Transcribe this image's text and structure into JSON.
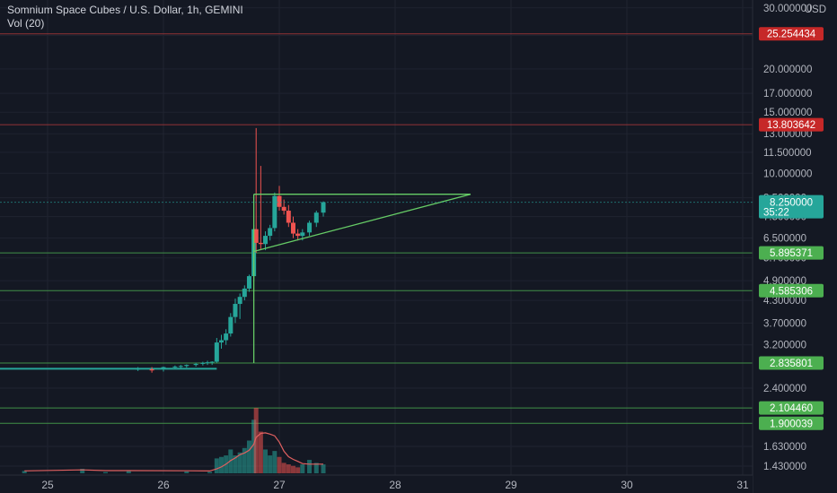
{
  "header": {
    "title": "Somnium Space Cubes / U.S. Dollar, 1h, GEMINI",
    "volume_label": "Vol (20)"
  },
  "colors": {
    "background": "#141823",
    "grid": "#1f2330",
    "up": "#26a69a",
    "down": "#ef5350",
    "horizontal_line_green": "#4caf50",
    "horizontal_line_red": "#b23a3a",
    "pattern_line": "#66cc66",
    "volume_ma": "#e06060",
    "axis_text": "#b2b5be"
  },
  "price_axis": {
    "currency": "USD",
    "ticks": [
      "30.000000",
      "25.000000",
      "20.000000",
      "17.000000",
      "15.000000",
      "13.000000",
      "11.500000",
      "10.000000",
      "8.500000",
      "7.500000",
      "6.500000",
      "5.700000",
      "4.900000",
      "4.300000",
      "3.700000",
      "3.200000",
      "2.400000",
      "1.630000",
      "1.430000"
    ],
    "scale": "log"
  },
  "time_axis": {
    "ticks": [
      "25",
      "26",
      "27",
      "28",
      "29",
      "30",
      "31"
    ]
  },
  "horizontal_levels": [
    {
      "label": "25.254434",
      "value": 25.254434,
      "color": "red"
    },
    {
      "label": "13.803642",
      "value": 13.803642,
      "color": "red"
    },
    {
      "label": "5.895371",
      "value": 5.895371,
      "color": "green"
    },
    {
      "label": "4.585306",
      "value": 4.585306,
      "color": "green"
    },
    {
      "label": "2.835801",
      "value": 2.835801,
      "color": "green"
    },
    {
      "label": "2.104460",
      "value": 2.10446,
      "color": "green"
    },
    {
      "label": "1.900039",
      "value": 1.900039,
      "color": "green"
    }
  ],
  "current_price": {
    "label": "8.250000",
    "value": 8.25,
    "countdown": "35:22"
  },
  "triangle_pattern": {
    "top_price": 8.7,
    "bottom_price": 5.95
  },
  "chart_data": {
    "type": "candlestick",
    "scale": "log",
    "candles": [
      {
        "t": 25.78,
        "o": 2.72,
        "h": 2.76,
        "l": 2.69,
        "c": 2.73
      },
      {
        "t": 25.9,
        "o": 2.72,
        "h": 2.76,
        "l": 2.66,
        "c": 2.7
      },
      {
        "t": 26.0,
        "o": 2.73,
        "h": 2.77,
        "l": 2.68,
        "c": 2.76
      },
      {
        "t": 26.1,
        "o": 2.76,
        "h": 2.79,
        "l": 2.72,
        "c": 2.77
      },
      {
        "t": 26.15,
        "o": 2.77,
        "h": 2.8,
        "l": 2.74,
        "c": 2.78
      },
      {
        "t": 26.2,
        "o": 2.78,
        "h": 2.81,
        "l": 2.75,
        "c": 2.8
      },
      {
        "t": 26.28,
        "o": 2.8,
        "h": 2.84,
        "l": 2.77,
        "c": 2.82
      },
      {
        "t": 26.34,
        "o": 2.82,
        "h": 2.86,
        "l": 2.79,
        "c": 2.84
      },
      {
        "t": 26.38,
        "o": 2.84,
        "h": 2.88,
        "l": 2.8,
        "c": 2.85
      },
      {
        "t": 26.42,
        "o": 2.85,
        "h": 2.87,
        "l": 2.8,
        "c": 2.86
      },
      {
        "t": 26.46,
        "o": 2.86,
        "h": 3.35,
        "l": 2.84,
        "c": 3.25
      },
      {
        "t": 26.5,
        "o": 3.25,
        "h": 3.42,
        "l": 3.12,
        "c": 3.3
      },
      {
        "t": 26.54,
        "o": 3.3,
        "h": 3.55,
        "l": 3.2,
        "c": 3.45
      },
      {
        "t": 26.58,
        "o": 3.45,
        "h": 3.95,
        "l": 3.38,
        "c": 3.85
      },
      {
        "t": 26.62,
        "o": 3.85,
        "h": 4.35,
        "l": 3.7,
        "c": 4.2
      },
      {
        "t": 26.66,
        "o": 4.2,
        "h": 4.5,
        "l": 3.8,
        "c": 4.4
      },
      {
        "t": 26.7,
        "o": 4.4,
        "h": 4.75,
        "l": 4.3,
        "c": 4.65
      },
      {
        "t": 26.74,
        "o": 4.65,
        "h": 5.1,
        "l": 4.55,
        "c": 5.05
      },
      {
        "t": 26.78,
        "o": 5.05,
        "h": 7.1,
        "l": 4.9,
        "c": 6.9
      },
      {
        "t": 26.8,
        "o": 6.9,
        "h": 13.5,
        "l": 5.9,
        "c": 6.3
      },
      {
        "t": 26.84,
        "o": 6.3,
        "h": 10.5,
        "l": 6.0,
        "c": 6.25
      },
      {
        "t": 26.88,
        "o": 6.25,
        "h": 6.8,
        "l": 6.0,
        "c": 6.6
      },
      {
        "t": 26.92,
        "o": 6.6,
        "h": 7.1,
        "l": 6.4,
        "c": 6.95
      },
      {
        "t": 26.96,
        "o": 6.95,
        "h": 8.8,
        "l": 6.8,
        "c": 8.6
      },
      {
        "t": 27.0,
        "o": 8.6,
        "h": 9.2,
        "l": 7.8,
        "c": 8.0
      },
      {
        "t": 27.04,
        "o": 8.0,
        "h": 8.4,
        "l": 7.6,
        "c": 7.8
      },
      {
        "t": 27.08,
        "o": 7.8,
        "h": 8.1,
        "l": 7.0,
        "c": 7.2
      },
      {
        "t": 27.12,
        "o": 7.2,
        "h": 7.5,
        "l": 6.5,
        "c": 6.7
      },
      {
        "t": 27.16,
        "o": 6.7,
        "h": 6.9,
        "l": 6.4,
        "c": 6.6
      },
      {
        "t": 27.2,
        "o": 6.6,
        "h": 6.9,
        "l": 6.4,
        "c": 6.75
      },
      {
        "t": 27.26,
        "o": 6.75,
        "h": 7.3,
        "l": 6.6,
        "c": 7.2
      },
      {
        "t": 27.32,
        "o": 7.2,
        "h": 7.8,
        "l": 7.0,
        "c": 7.7
      },
      {
        "t": 27.38,
        "o": 7.7,
        "h": 8.3,
        "l": 7.5,
        "c": 8.25
      }
    ],
    "volume": [
      {
        "t": 24.8,
        "v": 0.08
      },
      {
        "t": 25.3,
        "v": 0.15
      },
      {
        "t": 25.5,
        "v": 0.04
      },
      {
        "t": 25.7,
        "v": 0.09
      },
      {
        "t": 26.2,
        "v": 0.06
      },
      {
        "t": 26.4,
        "v": 0.05
      },
      {
        "t": 26.46,
        "v": 0.5
      },
      {
        "t": 26.5,
        "v": 0.55
      },
      {
        "t": 26.54,
        "v": 0.6
      },
      {
        "t": 26.58,
        "v": 0.8
      },
      {
        "t": 26.62,
        "v": 0.6
      },
      {
        "t": 26.66,
        "v": 0.7
      },
      {
        "t": 26.7,
        "v": 0.85
      },
      {
        "t": 26.74,
        "v": 1.1
      },
      {
        "t": 26.78,
        "v": 1.8
      },
      {
        "t": 26.8,
        "v": 2.2
      },
      {
        "t": 26.84,
        "v": 1.4
      },
      {
        "t": 26.88,
        "v": 0.8
      },
      {
        "t": 26.92,
        "v": 0.6
      },
      {
        "t": 26.96,
        "v": 0.75
      },
      {
        "t": 27.0,
        "v": 0.55
      },
      {
        "t": 27.04,
        "v": 0.35
      },
      {
        "t": 27.08,
        "v": 0.3
      },
      {
        "t": 27.12,
        "v": 0.25
      },
      {
        "t": 27.16,
        "v": 0.2
      },
      {
        "t": 27.2,
        "v": 0.3
      },
      {
        "t": 27.26,
        "v": 0.45
      },
      {
        "t": 27.32,
        "v": 0.35
      },
      {
        "t": 27.38,
        "v": 0.3
      }
    ]
  }
}
